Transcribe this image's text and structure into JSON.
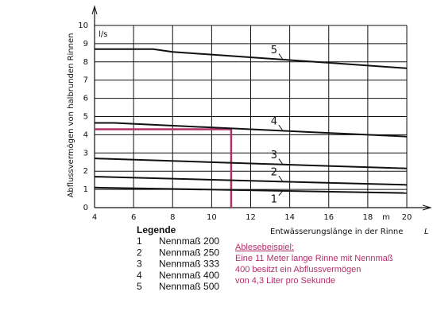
{
  "chart_data": {
    "type": "line",
    "y_label": "Abflussvermögen von halbrunden Rinnen",
    "y_unit": "l/s",
    "x_label": "Entwässerungslänge in der Rinne",
    "x_symbol": "L",
    "x_unit": "m",
    "xlim": [
      4,
      20
    ],
    "ylim": [
      0,
      10
    ],
    "xticks": [
      4,
      6,
      8,
      10,
      12,
      14,
      16,
      18,
      20
    ],
    "yticks": [
      0,
      1,
      2,
      3,
      4,
      5,
      6,
      7,
      8,
      9,
      10
    ],
    "grid": true,
    "legend_title": "Legende",
    "series": [
      {
        "label": "1",
        "name": "Nennmaß 200",
        "color": "#111111",
        "x": [
          4,
          20
        ],
        "values": [
          1.1,
          0.8
        ]
      },
      {
        "label": "2",
        "name": "Nennmaß 250",
        "color": "#111111",
        "x": [
          4,
          20
        ],
        "values": [
          1.7,
          1.25
        ]
      },
      {
        "label": "3",
        "name": "Nennmaß 333",
        "color": "#111111",
        "x": [
          4,
          20
        ],
        "values": [
          2.7,
          2.15
        ]
      },
      {
        "label": "4",
        "name": "Nennmaß 400",
        "color": "#111111",
        "x": [
          4,
          5,
          12,
          20
        ],
        "values": [
          4.65,
          4.65,
          4.3,
          3.9
        ]
      },
      {
        "label": "5",
        "name": "Nennmaß 500",
        "color": "#111111",
        "x": [
          4,
          7,
          8,
          10,
          14,
          20
        ],
        "values": [
          8.7,
          8.7,
          8.55,
          8.4,
          8.1,
          7.65
        ]
      }
    ],
    "reading_example": {
      "x": 11,
      "y": 4.3,
      "color": "#b0306a",
      "title": "Ablesebeispiel:",
      "lines": [
        "Eine 11 Meter lange Rinne mit Nennmaß",
        "400 besitzt ein Abflussvermögen",
        "von 4,3 Liter pro Sekunde"
      ]
    }
  }
}
